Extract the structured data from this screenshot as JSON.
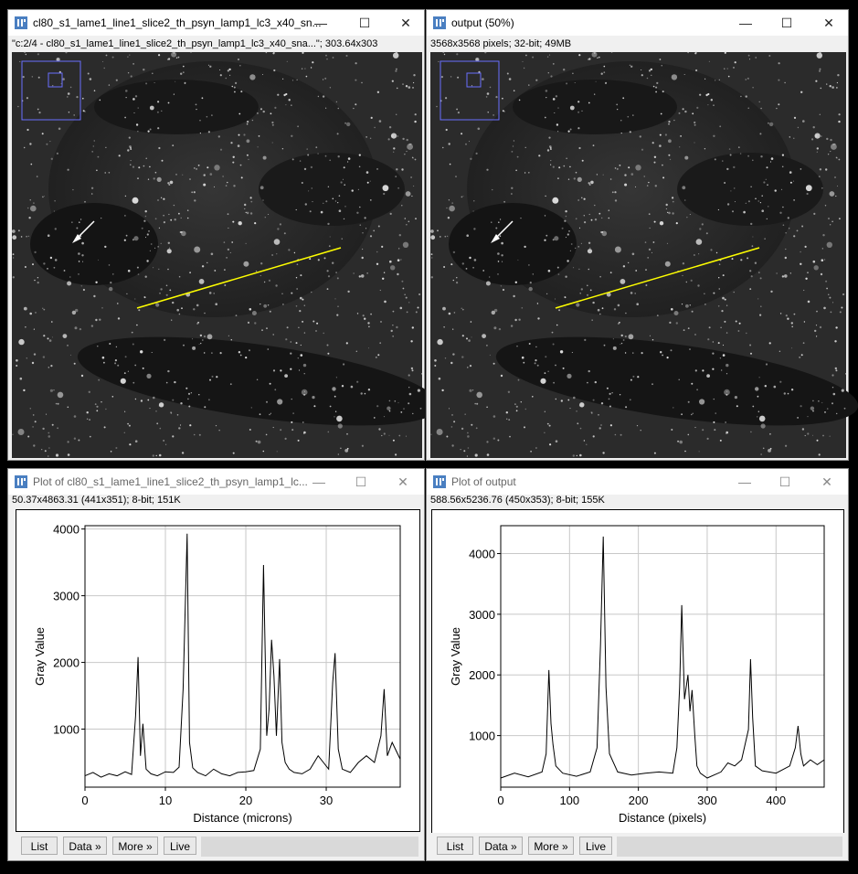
{
  "windows": {
    "image1": {
      "title": "cl80_s1_lame1_line1_slice2_th_psyn_lamp1_lc3_x40_sn...",
      "info": "\"c:2/4 - cl80_s1_lame1_line1_slice2_th_psyn_lamp1_lc3_x40_sna...\"; 303.64x303"
    },
    "image2": {
      "title": "output (50%)",
      "info": "3568x3568 pixels; 32-bit; 49MB"
    },
    "plot1": {
      "title": "Plot of cl80_s1_lame1_line1_slice2_th_psyn_lamp1_lc...",
      "info": "50.37x4863.31   (441x351); 8-bit; 151K"
    },
    "plot2": {
      "title": "Plot of output",
      "info": "588.56x5236.76   (450x353); 8-bit; 155K"
    }
  },
  "buttons": {
    "list": "List",
    "data": "Data »",
    "more": "More »",
    "live": "Live"
  },
  "controls": {
    "minimize": "—",
    "maximize": "☐",
    "close": "✕"
  },
  "chart_data": [
    {
      "type": "line",
      "xlabel": "Distance (microns)",
      "ylabel": "Gray Value",
      "xlim": [
        0,
        39.2
      ],
      "ylim": [
        130,
        4050
      ],
      "xticks": [
        0,
        10,
        20,
        30
      ],
      "yticks": [
        1000,
        2000,
        3000,
        4000
      ],
      "grid": true,
      "series": [
        {
          "x": [
            0,
            1,
            2,
            3,
            4,
            5,
            5.8,
            6.3,
            6.6,
            6.9,
            7.2,
            7.6,
            8.2,
            9,
            10,
            11,
            11.7,
            12.2,
            12.7,
            13.0,
            13.4,
            14,
            15,
            16,
            17,
            18,
            19,
            20,
            21,
            21.8,
            22.2,
            22.6,
            22.9,
            23.2,
            23.5,
            23.8,
            24.2,
            24.5,
            24.9,
            25.4,
            26,
            27,
            28,
            29,
            30.3,
            30.8,
            31.1,
            31.5,
            32,
            33,
            34,
            35,
            36,
            36.8,
            37.2,
            37.6,
            38.2,
            39.2
          ],
          "y": [
            300,
            350,
            280,
            330,
            300,
            360,
            320,
            1200,
            2080,
            600,
            1080,
            400,
            330,
            300,
            360,
            350,
            430,
            1600,
            3930,
            800,
            420,
            350,
            300,
            400,
            330,
            300,
            350,
            360,
            380,
            700,
            3460,
            900,
            1300,
            2340,
            1800,
            900,
            2050,
            800,
            500,
            400,
            350,
            330,
            400,
            600,
            400,
            1700,
            2140,
            700,
            400,
            350,
            500,
            600,
            500,
            900,
            1600,
            600,
            800,
            550
          ]
        }
      ]
    },
    {
      "type": "line",
      "xlabel": "Distance (pixels)",
      "ylabel": "Gray Value",
      "xlim": [
        0,
        470
      ],
      "ylim": [
        150,
        4460
      ],
      "xticks": [
        0,
        100,
        200,
        300,
        400
      ],
      "yticks": [
        1000,
        2000,
        3000,
        4000
      ],
      "grid": true,
      "series": [
        {
          "x": [
            0,
            20,
            40,
            60,
            66,
            70,
            73,
            76,
            80,
            90,
            110,
            130,
            140,
            145,
            149,
            153,
            158,
            170,
            190,
            210,
            230,
            250,
            256,
            260,
            263,
            267,
            272,
            275,
            278,
            282,
            285,
            290,
            300,
            320,
            330,
            340,
            350,
            360,
            363,
            366,
            370,
            380,
            400,
            420,
            428,
            432,
            436,
            440,
            450,
            460,
            470
          ],
          "y": [
            300,
            380,
            320,
            400,
            700,
            2080,
            1200,
            850,
            500,
            380,
            330,
            400,
            800,
            2500,
            4280,
            1800,
            700,
            400,
            350,
            380,
            400,
            380,
            800,
            1800,
            3150,
            1600,
            2000,
            1400,
            1750,
            1000,
            500,
            380,
            300,
            400,
            550,
            500,
            600,
            1100,
            2260,
            1300,
            500,
            420,
            380,
            500,
            800,
            1160,
            700,
            500,
            600,
            520,
            600
          ]
        }
      ]
    }
  ]
}
